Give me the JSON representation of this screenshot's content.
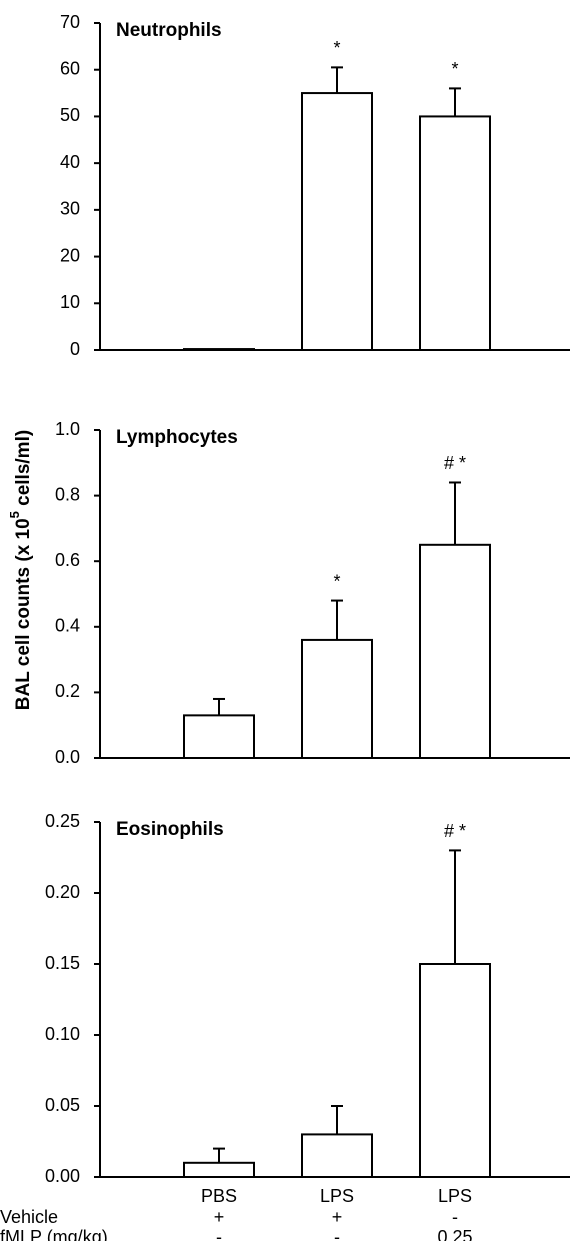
{
  "y_label": {
    "before": "BAL cell counts (x 10",
    "sup": "5",
    "after": " cells/ml)"
  },
  "chart_data": [
    {
      "type": "bar",
      "title": "Neutrophils",
      "values": [
        0.2,
        55,
        50
      ],
      "errors": [
        null,
        5.5,
        6
      ],
      "significance": [
        null,
        "*",
        "*"
      ],
      "color": "#ffffff",
      "ylim": [
        0,
        70
      ],
      "yticks": [
        0,
        10,
        20,
        30,
        40,
        50,
        60,
        70
      ]
    },
    {
      "type": "bar",
      "title": "Lymphocytes",
      "values": [
        0.13,
        0.36,
        0.65
      ],
      "errors": [
        0.05,
        0.12,
        0.19
      ],
      "significance": [
        null,
        "*",
        "# *"
      ],
      "color": "#ffffff",
      "ylim": [
        0,
        1.0
      ],
      "yticks": [
        {
          "value": 0,
          "label": "0.0"
        },
        0.2,
        0.4,
        0.6,
        0.8,
        {
          "value": 1.0,
          "label": "1.0"
        }
      ]
    },
    {
      "type": "bar",
      "title": "Eosinophils",
      "categories": [
        "PBS",
        "LPS",
        "LPS"
      ],
      "values": [
        0.01,
        0.03,
        0.15
      ],
      "errors": [
        0.01,
        0.02,
        0.08
      ],
      "significance": [
        null,
        null,
        "# *"
      ],
      "color": "#ffffff",
      "ylim": [
        0,
        0.25
      ],
      "yticks": [
        {
          "value": 0,
          "label": "0.00"
        },
        {
          "value": 0.05,
          "label": "0.05"
        },
        {
          "value": 0.1,
          "label": "0.10"
        },
        {
          "value": 0.15,
          "label": "0.15"
        },
        {
          "value": 0.2,
          "label": "0.20"
        },
        {
          "value": 0.25,
          "label": "0.25"
        }
      ]
    }
  ],
  "treatments": [
    {
      "label": "Vehicle",
      "values": [
        "+",
        "+",
        "-"
      ]
    },
    {
      "label": "fMLP (mg/kg)",
      "values": [
        "-",
        "-",
        "0.25"
      ]
    }
  ]
}
